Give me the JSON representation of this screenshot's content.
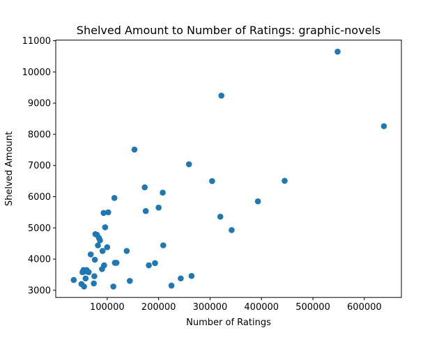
{
  "colors": {
    "marker": "#1f77b4",
    "axes": "#000000",
    "background": "#ffffff"
  },
  "chart_data": {
    "type": "scatter",
    "title": "Shelved Amount to Number of Ratings: graphic-novels",
    "xlabel": "Number of Ratings",
    "ylabel": "Shelved Amount",
    "xlim": [
      0,
      672000
    ],
    "ylim": [
      2770,
      11020
    ],
    "xticks": [
      100000,
      200000,
      300000,
      400000,
      500000,
      600000
    ],
    "xtick_labels": [
      "100000",
      "200000",
      "300000",
      "400000",
      "500000",
      "600000"
    ],
    "yticks": [
      3000,
      4000,
      5000,
      6000,
      7000,
      8000,
      9000,
      10000,
      11000
    ],
    "ytick_labels": [
      "3000",
      "4000",
      "5000",
      "6000",
      "7000",
      "8000",
      "9000",
      "10000",
      "11000"
    ],
    "grid": false,
    "legend": "none",
    "points": [
      [
        35000,
        3330
      ],
      [
        50000,
        3200
      ],
      [
        52000,
        3580
      ],
      [
        54000,
        3650
      ],
      [
        55000,
        3120
      ],
      [
        56000,
        3600
      ],
      [
        58000,
        3380
      ],
      [
        60000,
        3650
      ],
      [
        62000,
        3600
      ],
      [
        64000,
        3580
      ],
      [
        68000,
        4150
      ],
      [
        74000,
        3220
      ],
      [
        75000,
        3450
      ],
      [
        76000,
        3980
      ],
      [
        77000,
        4800
      ],
      [
        80000,
        4780
      ],
      [
        82000,
        4440
      ],
      [
        84000,
        4680
      ],
      [
        86000,
        4600
      ],
      [
        90000,
        3680
      ],
      [
        91000,
        4260
      ],
      [
        93000,
        5480
      ],
      [
        94000,
        3800
      ],
      [
        96000,
        5020
      ],
      [
        100000,
        4380
      ],
      [
        102000,
        5500
      ],
      [
        112000,
        3120
      ],
      [
        114000,
        5960
      ],
      [
        115000,
        3880
      ],
      [
        118000,
        3880
      ],
      [
        138000,
        4260
      ],
      [
        144000,
        3300
      ],
      [
        153000,
        7510
      ],
      [
        173000,
        6300
      ],
      [
        175000,
        5540
      ],
      [
        181000,
        3800
      ],
      [
        193000,
        3870
      ],
      [
        200000,
        5650
      ],
      [
        208000,
        6130
      ],
      [
        209000,
        4440
      ],
      [
        225000,
        3150
      ],
      [
        243000,
        3380
      ],
      [
        259000,
        7040
      ],
      [
        264000,
        3460
      ],
      [
        304000,
        6500
      ],
      [
        320000,
        5360
      ],
      [
        322000,
        9240
      ],
      [
        342000,
        4930
      ],
      [
        393000,
        5850
      ],
      [
        445000,
        6510
      ],
      [
        548000,
        10650
      ],
      [
        638000,
        8260
      ]
    ]
  }
}
